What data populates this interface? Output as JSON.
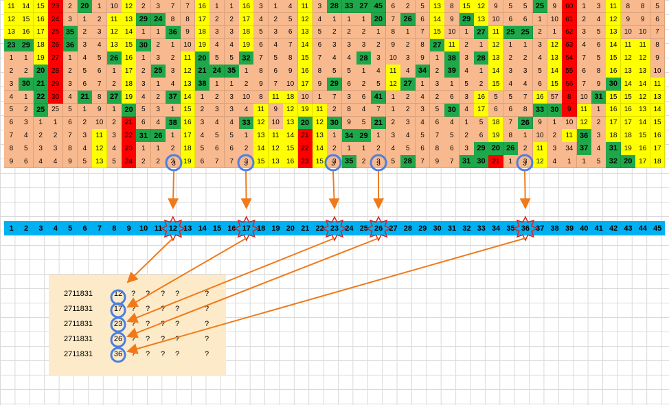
{
  "rows": [
    [
      "11",
      "14",
      "15",
      "23",
      "2",
      "20",
      "1",
      "10",
      "12",
      "2",
      "3",
      "7",
      "7",
      "16",
      "1",
      "1",
      "16",
      "3",
      "1",
      "4",
      "11",
      "3",
      "28",
      "33",
      "27",
      "45",
      "6",
      "2",
      "5",
      "13",
      "8",
      "15",
      "12",
      "9",
      "5",
      "5",
      "25",
      "9",
      "60",
      "1",
      "3",
      "11",
      "8",
      "8",
      "5"
    ],
    [
      "12",
      "15",
      "16",
      "24",
      "3",
      "1",
      "2",
      "11",
      "13",
      "29",
      "24",
      "8",
      "8",
      "17",
      "2",
      "2",
      "17",
      "4",
      "2",
      "5",
      "12",
      "4",
      "1",
      "1",
      "1",
      "20",
      "7",
      "26",
      "6",
      "14",
      "9",
      "29",
      "13",
      "10",
      "6",
      "6",
      "1",
      "10",
      "61",
      "2",
      "4",
      "12",
      "9",
      "9",
      "6"
    ],
    [
      "13",
      "16",
      "17",
      "25",
      "35",
      "2",
      "3",
      "12",
      "14",
      "1",
      "1",
      "36",
      "9",
      "18",
      "3",
      "3",
      "18",
      "5",
      "3",
      "6",
      "13",
      "5",
      "2",
      "2",
      "2",
      "1",
      "8",
      "1",
      "7",
      "15",
      "10",
      "1",
      "27",
      "11",
      "25",
      "25",
      "2",
      "1",
      "62",
      "3",
      "5",
      "13",
      "10",
      "10",
      "7"
    ],
    [
      "23",
      "29",
      "18",
      "26",
      "36",
      "3",
      "4",
      "13",
      "15",
      "30",
      "2",
      "1",
      "10",
      "19",
      "4",
      "4",
      "19",
      "6",
      "4",
      "7",
      "14",
      "6",
      "3",
      "3",
      "3",
      "2",
      "9",
      "2",
      "8",
      "27",
      "11",
      "2",
      "1",
      "12",
      "1",
      "1",
      "3",
      "12",
      "63",
      "4",
      "6",
      "14",
      "11",
      "11",
      "8"
    ],
    [
      "1",
      "1",
      "19",
      "27",
      "1",
      "4",
      "5",
      "26",
      "16",
      "1",
      "3",
      "2",
      "11",
      "20",
      "5",
      "5",
      "32",
      "7",
      "5",
      "8",
      "15",
      "7",
      "4",
      "4",
      "28",
      "3",
      "10",
      "3",
      "9",
      "1",
      "38",
      "3",
      "28",
      "13",
      "2",
      "2",
      "4",
      "13",
      "54",
      "7",
      "5",
      "15",
      "12",
      "12",
      "9"
    ],
    [
      "2",
      "2",
      "20",
      "28",
      "2",
      "5",
      "6",
      "1",
      "17",
      "2",
      "25",
      "3",
      "12",
      "21",
      "24",
      "35",
      "1",
      "8",
      "6",
      "9",
      "16",
      "8",
      "5",
      "5",
      "1",
      "4",
      "11",
      "4",
      "34",
      "2",
      "39",
      "4",
      "1",
      "14",
      "3",
      "3",
      "5",
      "14",
      "55",
      "6",
      "8",
      "16",
      "13",
      "13",
      "10"
    ],
    [
      "3",
      "30",
      "21",
      "29",
      "3",
      "6",
      "7",
      "2",
      "18",
      "3",
      "1",
      "4",
      "13",
      "38",
      "1",
      "1",
      "2",
      "9",
      "7",
      "10",
      "17",
      "9",
      "29",
      "6",
      "2",
      "5",
      "12",
      "27",
      "1",
      "3",
      "1",
      "5",
      "2",
      "15",
      "4",
      "4",
      "6",
      "15",
      "56",
      "7",
      "9",
      "30",
      "14",
      "14",
      "11"
    ],
    [
      "4",
      "1",
      "22",
      "30",
      "4",
      "21",
      "8",
      "27",
      "19",
      "4",
      "2",
      "37",
      "14",
      "1",
      "2",
      "3",
      "10",
      "8",
      "11",
      "18",
      "10",
      "1",
      "7",
      "3",
      "6",
      "41",
      "1",
      "2",
      "4",
      "2",
      "6",
      "3",
      "16",
      "5",
      "5",
      "7",
      "16",
      "57",
      "8",
      "10",
      "31",
      "15",
      "15",
      "12",
      "13"
    ],
    [
      "5",
      "2",
      "25",
      "25",
      "5",
      "1",
      "9",
      "1",
      "20",
      "5",
      "3",
      "1",
      "15",
      "2",
      "3",
      "3",
      "4",
      "11",
      "9",
      "12",
      "19",
      "11",
      "2",
      "8",
      "4",
      "7",
      "1",
      "2",
      "3",
      "5",
      "30",
      "4",
      "17",
      "6",
      "6",
      "8",
      "33",
      "30",
      "9",
      "11",
      "1",
      "16",
      "16",
      "13",
      "14"
    ],
    [
      "6",
      "3",
      "1",
      "1",
      "6",
      "2",
      "10",
      "2",
      "21",
      "6",
      "4",
      "38",
      "16",
      "3",
      "4",
      "4",
      "33",
      "12",
      "10",
      "13",
      "20",
      "12",
      "30",
      "9",
      "5",
      "21",
      "2",
      "3",
      "4",
      "6",
      "4",
      "1",
      "5",
      "18",
      "7",
      "26",
      "9",
      "1",
      "10",
      "12",
      "2",
      "17",
      "17",
      "14",
      "15"
    ],
    [
      "7",
      "4",
      "2",
      "2",
      "7",
      "3",
      "11",
      "3",
      "22",
      "31",
      "26",
      "1",
      "17",
      "4",
      "5",
      "5",
      "1",
      "13",
      "11",
      "14",
      "21",
      "13",
      "1",
      "34",
      "29",
      "1",
      "3",
      "4",
      "5",
      "7",
      "5",
      "2",
      "6",
      "19",
      "8",
      "1",
      "10",
      "2",
      "11",
      "36",
      "3",
      "18",
      "18",
      "15",
      "16"
    ],
    [
      "8",
      "5",
      "3",
      "3",
      "8",
      "4",
      "12",
      "4",
      "23",
      "1",
      "1",
      "2",
      "18",
      "5",
      "6",
      "6",
      "2",
      "14",
      "12",
      "15",
      "22",
      "14",
      "2",
      "1",
      "1",
      "2",
      "4",
      "5",
      "6",
      "8",
      "6",
      "3",
      "29",
      "20",
      "26",
      "2",
      "11",
      "3",
      "34",
      "37",
      "4",
      "31",
      "19",
      "16",
      "17"
    ],
    [
      "9",
      "6",
      "4",
      "4",
      "9",
      "5",
      "13",
      "5",
      "24",
      "2",
      "2",
      "3",
      "19",
      "6",
      "7",
      "7",
      "3",
      "15",
      "13",
      "16",
      "23",
      "15",
      "3",
      "35",
      "2",
      "3",
      "5",
      "28",
      "7",
      "9",
      "7",
      "31",
      "30",
      "21",
      "1",
      "3",
      "12",
      "4",
      "1",
      "1",
      "5",
      "32",
      "20",
      "17",
      "18"
    ]
  ],
  "number_bar": [
    "1",
    "2",
    "3",
    "4",
    "5",
    "6",
    "7",
    "8",
    "9",
    "10",
    "11",
    "12",
    "13",
    "14",
    "15",
    "16",
    "17",
    "18",
    "19",
    "20",
    "21",
    "22",
    "23",
    "24",
    "25",
    "26",
    "27",
    "28",
    "29",
    "30",
    "31",
    "32",
    "33",
    "34",
    "35",
    "36",
    "37",
    "38",
    "39",
    "40",
    "41",
    "42",
    "43",
    "44",
    "45"
  ],
  "highlighted": [
    "12",
    "17",
    "23",
    "26",
    "36"
  ],
  "results": [
    {
      "id": "2711831",
      "num": "12",
      "q": [
        "?",
        "?",
        "?",
        "?",
        "?"
      ]
    },
    {
      "id": "2711831",
      "num": "17",
      "q": [
        "?",
        "?",
        "?",
        "?",
        "?"
      ]
    },
    {
      "id": "2711831",
      "num": "23",
      "q": [
        "?",
        "?",
        "?",
        "?",
        "?"
      ]
    },
    {
      "id": "2711831",
      "num": "26",
      "q": [
        "?",
        "?",
        "?",
        "?",
        "?"
      ]
    },
    {
      "id": "2711831",
      "num": "36",
      "q": [
        "?",
        "?",
        "?",
        "?",
        "?"
      ]
    }
  ],
  "circled_value": "3",
  "colors": {
    "peach": "#f8b98e",
    "yellow": "#ffff00",
    "green": "#1ea84a",
    "red": "#ff0000",
    "bar": "#00b0f0",
    "arrow": "#f07a1a",
    "circle": "#4a7fe0",
    "burst": "#d92020",
    "panel": "#fdeac8"
  }
}
